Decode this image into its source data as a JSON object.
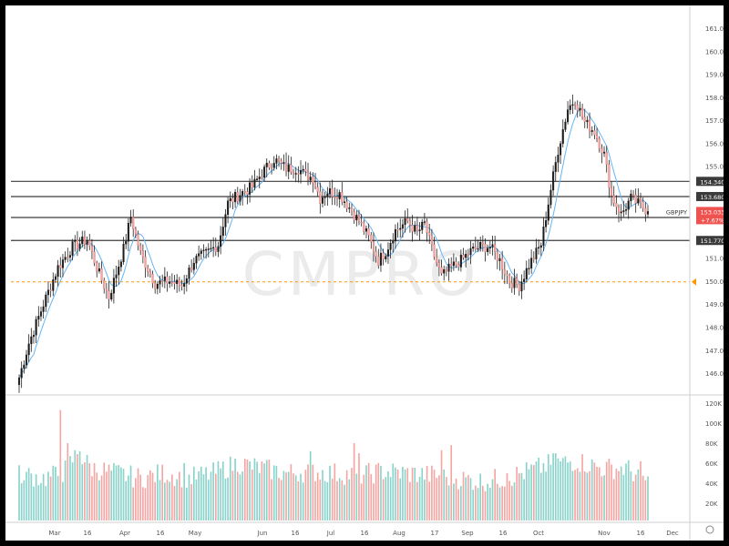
{
  "chart_data": {
    "type": "candlestick",
    "symbol": "GBPJPY",
    "watermark": "CMPRO",
    "colors": {
      "up": "#26a69a",
      "down": "#ef5350",
      "up_vol": "#8ad3cb",
      "down_vol": "#f5a6a3",
      "ma": "#64b5f6",
      "line": "#3b3b3b",
      "dash": "#ff9800"
    },
    "price_axis_ticks": [
      "161.000",
      "160.000",
      "159.000",
      "158.000",
      "157.000",
      "156.000",
      "155.000",
      "151.000",
      "150.000",
      "149.000",
      "148.000",
      "147.000",
      "146.000"
    ],
    "volume_axis_ticks": [
      "120K",
      "100K",
      "80K",
      "60K",
      "40K",
      "20K"
    ],
    "time_axis_labels": [
      "Mar",
      "16",
      "Apr",
      "16",
      "May",
      "Jun",
      "16",
      "Jul",
      "16",
      "Aug",
      "17",
      "Sep",
      "16",
      "Oct",
      "Nov",
      "16",
      "Dec"
    ],
    "levels": [
      {
        "label": "154.340",
        "value": 154.34
      },
      {
        "label": "153.680",
        "value": 153.68
      },
      {
        "label": "152.770",
        "value": 152.77
      },
      {
        "label": "151.770",
        "value": 151.77
      }
    ],
    "dashed_level": 149.97,
    "current": {
      "symbol": "GBPJPY",
      "price": "153.033",
      "change": "+7.67%",
      "value": 153.03
    },
    "ylim": [
      145.2,
      162.4
    ],
    "anchors": [
      [
        0,
        145.8
      ],
      [
        4,
        147.3
      ],
      [
        10,
        149.0
      ],
      [
        16,
        150.6
      ],
      [
        22,
        151.5
      ],
      [
        28,
        151.8
      ],
      [
        33,
        150.3
      ],
      [
        37,
        149.3
      ],
      [
        43,
        151.4
      ],
      [
        46,
        152.8
      ],
      [
        50,
        151.2
      ],
      [
        56,
        149.9
      ],
      [
        62,
        150.0
      ],
      [
        67,
        149.8
      ],
      [
        72,
        150.9
      ],
      [
        77,
        151.2
      ],
      [
        82,
        151.6
      ],
      [
        86,
        153.4
      ],
      [
        91,
        153.8
      ],
      [
        96,
        154.1
      ],
      [
        100,
        154.7
      ],
      [
        105,
        155.3
      ],
      [
        110,
        154.9
      ],
      [
        115,
        154.9
      ],
      [
        118,
        154.6
      ],
      [
        121,
        154.5
      ],
      [
        124,
        153.6
      ],
      [
        127,
        153.9
      ],
      [
        132,
        153.8
      ],
      [
        136,
        153.2
      ],
      [
        140,
        152.6
      ],
      [
        144,
        151.9
      ],
      [
        148,
        150.9
      ],
      [
        151,
        151.3
      ],
      [
        155,
        152.2
      ],
      [
        160,
        152.6
      ],
      [
        164,
        152.1
      ],
      [
        167,
        152.5
      ],
      [
        170,
        151.4
      ],
      [
        174,
        150.2
      ],
      [
        178,
        150.6
      ],
      [
        182,
        150.9
      ],
      [
        186,
        151.3
      ],
      [
        190,
        151.5
      ],
      [
        194,
        151.5
      ],
      [
        198,
        150.9
      ],
      [
        202,
        150.0
      ],
      [
        206,
        149.8
      ],
      [
        210,
        150.7
      ],
      [
        215,
        151.6
      ],
      [
        219,
        154.0
      ],
      [
        222,
        155.7
      ],
      [
        226,
        157.5
      ],
      [
        229,
        157.9
      ],
      [
        233,
        156.9
      ],
      [
        237,
        156.5
      ],
      [
        241,
        155.5
      ],
      [
        244,
        153.7
      ],
      [
        248,
        152.9
      ],
      [
        252,
        153.6
      ],
      [
        256,
        153.3
      ],
      [
        259,
        153.03
      ]
    ],
    "volume_anchors": [
      [
        0,
        50
      ],
      [
        10,
        45
      ],
      [
        18,
        50
      ],
      [
        24,
        70
      ],
      [
        30,
        55
      ],
      [
        40,
        50
      ],
      [
        50,
        45
      ],
      [
        60,
        50
      ],
      [
        70,
        45
      ],
      [
        80,
        50
      ],
      [
        90,
        60
      ],
      [
        100,
        55
      ],
      [
        110,
        50
      ],
      [
        120,
        52
      ],
      [
        130,
        50
      ],
      [
        140,
        48
      ],
      [
        150,
        52
      ],
      [
        160,
        50
      ],
      [
        170,
        48
      ],
      [
        180,
        45
      ],
      [
        190,
        42
      ],
      [
        200,
        45
      ],
      [
        210,
        52
      ],
      [
        220,
        60
      ],
      [
        230,
        62
      ],
      [
        240,
        55
      ],
      [
        250,
        55
      ],
      [
        259,
        42
      ]
    ],
    "volume_spikes": {
      "0": 58,
      "1": 40,
      "2": 43,
      "17": 113,
      "20": 80,
      "25": 72,
      "68": 60,
      "120": 72,
      "138": 80,
      "140": 70,
      "174": 73,
      "178": 78,
      "201": 50,
      "221": 70,
      "256": 62
    },
    "ma_label": "MA"
  }
}
